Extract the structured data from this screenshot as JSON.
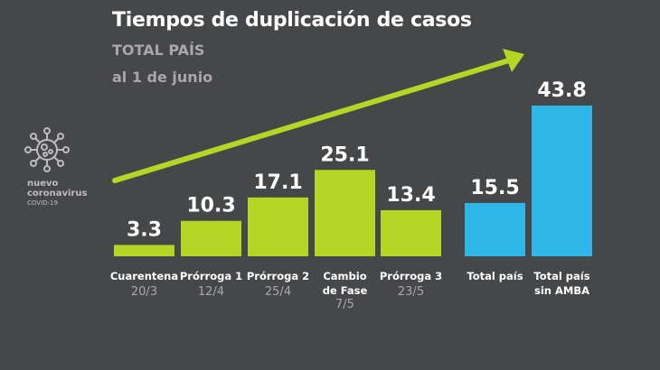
{
  "header": {
    "title": "Tiempos de duplicación de casos",
    "subtitle": "TOTAL PAÍS",
    "date": "al 1 de junio"
  },
  "logo": {
    "line1": "nuevo",
    "line2": "coronavirus",
    "line3": "COVID-19",
    "icon": "virus-icon"
  },
  "colors": {
    "background": "#464749",
    "green": "#b5d624",
    "blue": "#2fb7ea",
    "label": "#ffffff",
    "muted": "#a9a7ad"
  },
  "chart_data": {
    "type": "bar",
    "title": "Tiempos de duplicación de casos",
    "subtitle": "TOTAL PAÍS",
    "note": "al 1 de junio",
    "xlabel": "",
    "ylabel": "",
    "grid": false,
    "categories": [
      "Cuarentena",
      "Prórroga 1",
      "Prórroga 2",
      "Cambio de Fase",
      "Prórroga 3",
      "Total país",
      "Total país sin AMBA"
    ],
    "dates": [
      "20/3",
      "12/4",
      "25/4",
      "7/5",
      "23/5",
      "",
      ""
    ],
    "values": [
      3.3,
      10.3,
      17.1,
      25.1,
      13.4,
      15.5,
      43.8
    ],
    "labels": [
      "3.3",
      "10.3",
      "17.1",
      "25.1",
      "13.4",
      "15.5",
      "43.8"
    ],
    "bar_colors": [
      "green",
      "green",
      "green",
      "green",
      "green",
      "blue",
      "blue"
    ],
    "ylim": [
      0,
      43.8
    ],
    "annotations": [
      "trend-arrow-increasing"
    ]
  }
}
